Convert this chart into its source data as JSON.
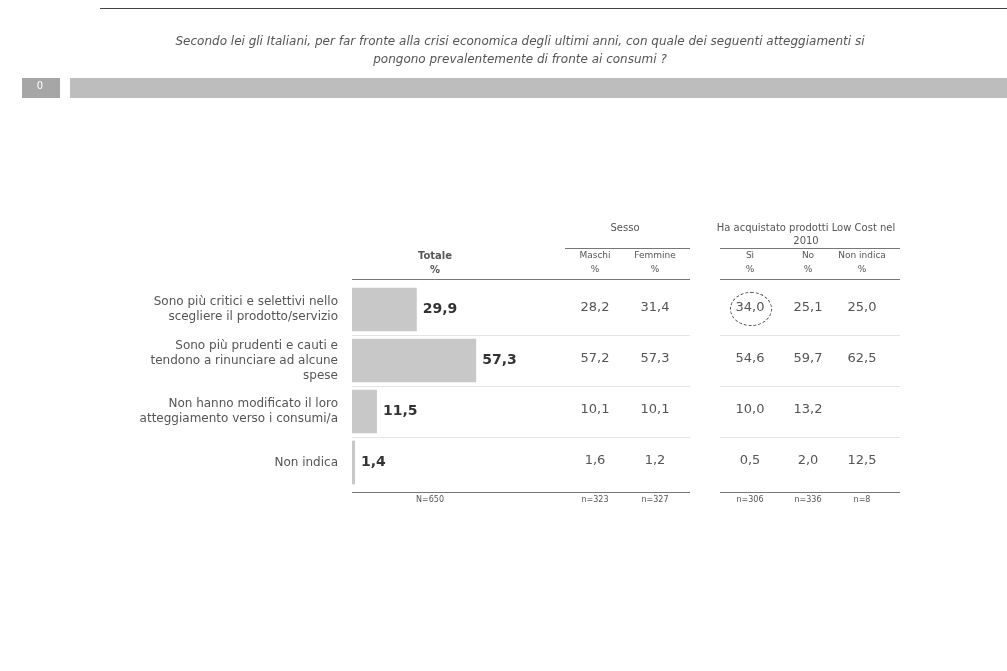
{
  "chart_data": {
    "type": "bar",
    "orientation": "horizontal",
    "title": "Secondo lei gli Italiani, per far fronte alla crisi economica degli ultimi anni, con quale dei seguenti atteggiamenti si pongono prevalentemente di fronte ai consumi ?",
    "categories": [
      "Sono più critici e selettivi nello scegliere il prodotto/servizio",
      "Sono più prudenti e cauti e tendono a rinunciare ad alcune spese",
      "Non hanno modificato il loro atteggiamento verso i consumi/a",
      "Non indica"
    ],
    "values": [
      29.9,
      57.3,
      11.5,
      1.4
    ],
    "value_labels": [
      "29,9",
      "57,3",
      "11,5",
      "1,4"
    ],
    "color": "#c8c8c8",
    "tick_labels": false,
    "legend": false,
    "annotations": [
      "0",
      "Totale",
      "%",
      "Sesso",
      "Ha acquistato prodotti Low Cost nel 2010",
      "Maschi",
      "Femmine",
      "Sì",
      "No",
      "Non indica",
      "%",
      "%",
      "%",
      "%",
      "%",
      "28,2",
      "31,4",
      "34,0",
      "25,1",
      "25,0",
      "57,2",
      "57,3",
      "54,6",
      "59,7",
      "62,5",
      "10,1",
      "10,1",
      "10,0",
      "13,2",
      "1,6",
      "1,2",
      "0,5",
      "2,0",
      "12,5",
      "N=650",
      "n=323",
      "n=327",
      "n=306",
      "n=336",
      "n=8"
    ]
  }
}
